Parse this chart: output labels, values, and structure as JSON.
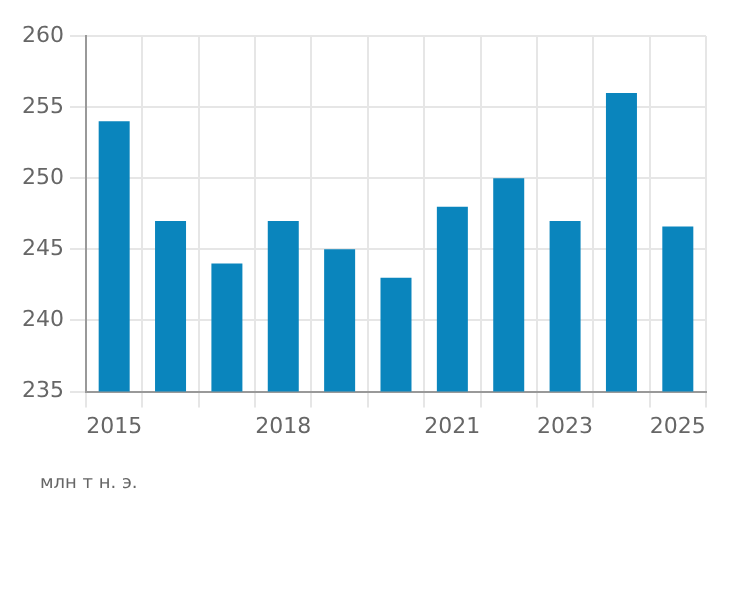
{
  "chart_data": {
    "type": "bar",
    "categories": [
      "2015",
      null,
      null,
      "2018",
      null,
      null,
      "2021",
      null,
      "2023",
      null,
      "2025"
    ],
    "values": [
      254,
      247,
      244,
      247,
      245,
      243,
      248,
      250,
      247,
      256,
      246.6
    ],
    "color": "#0a85bd",
    "ylim": [
      235,
      260
    ],
    "yticks": [
      235,
      240,
      245,
      250,
      255,
      260
    ],
    "grid": true,
    "annotations": [
      "млн т н. э."
    ]
  }
}
